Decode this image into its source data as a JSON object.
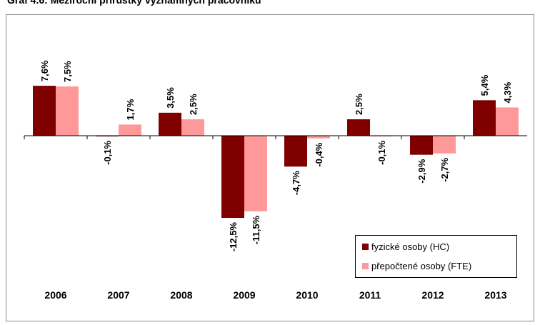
{
  "chart_data": {
    "type": "bar",
    "title": "Graf 4.6: Meziroční přírůstky významných pracovníků",
    "categories": [
      "2006",
      "2007",
      "2008",
      "2009",
      "2010",
      "2011",
      "2012",
      "2013"
    ],
    "series": [
      {
        "name": "fyzické osoby (HC)",
        "color": "#800000",
        "values": [
          7.6,
          -0.1,
          3.5,
          -12.5,
          -4.7,
          2.5,
          -2.9,
          5.4
        ],
        "value_labels": [
          "7,6%",
          "-0,1%",
          "3,5%",
          "-12,5%",
          "-4,7%",
          "2,5%",
          "-2,9%",
          "5,4%"
        ]
      },
      {
        "name": "přepočtené osoby (FTE)",
        "color": "#ff9999",
        "values": [
          7.5,
          1.7,
          2.5,
          -11.5,
          -0.4,
          -0.1,
          -2.7,
          4.3
        ],
        "value_labels": [
          "7,5%",
          "1,7%",
          "2,5%",
          "-11,5%",
          "-0,4%",
          "-0,1%",
          "-2,7%",
          "4,3%"
        ]
      }
    ]
  }
}
